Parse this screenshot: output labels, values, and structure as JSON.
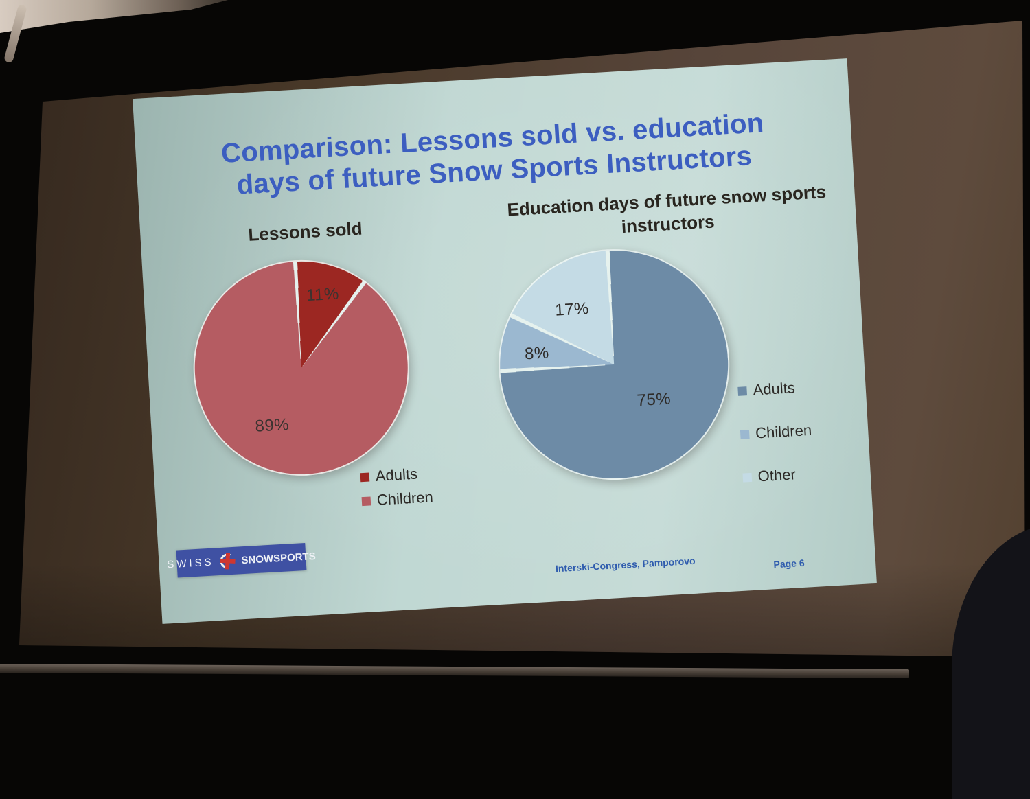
{
  "slide": {
    "title_lines": [
      "Comparison: Lessons sold vs. education",
      "days of future Snow Sports Instructors"
    ],
    "title_color": "#3c5ec0",
    "background_color": "#bcd5d0",
    "footer": {
      "left_text": "Interski-Congress, Pamporovo",
      "right_text": "Page 6",
      "color": "#2f5cae"
    },
    "logo": {
      "word_left": "SWISS",
      "word_right": "SNOWSPORTS",
      "bar_color": "#3f51a3",
      "emblem": "swiss-cross-skier"
    }
  },
  "chart_data": [
    {
      "type": "pie",
      "title": "Lessons sold",
      "categories": [
        "Adults",
        "Children"
      ],
      "values": [
        11,
        89
      ],
      "value_labels": [
        "11%",
        "89%"
      ],
      "colors": [
        "#9c2722",
        "#b55c62"
      ],
      "label_color": "#3a3330",
      "legend_position": "below-right",
      "start_angle_deg": 0,
      "direction": "clockwise"
    },
    {
      "type": "pie",
      "title": "Education days of future snow sports instructors",
      "categories": [
        "Adults",
        "Children",
        "Other"
      ],
      "values": [
        75,
        8,
        17
      ],
      "value_labels": [
        "75%",
        "8%",
        "17%"
      ],
      "colors": [
        "#6d8ba6",
        "#9bb8d0",
        "#c4dbe5"
      ],
      "label_color": "#2e2b28",
      "legend_position": "right",
      "start_angle_deg": 0,
      "direction": "clockwise"
    }
  ]
}
